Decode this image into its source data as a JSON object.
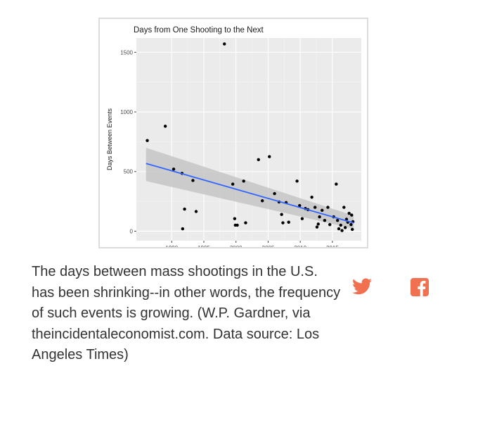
{
  "chart_data": {
    "type": "scatter",
    "title": "Days from One Shooting to the Next",
    "xlabel": "",
    "ylabel": "Days Between Events",
    "xlim": [
      1984.5,
      2019.5
    ],
    "ylim": [
      -80,
      1620
    ],
    "xticks": [
      1990,
      1995,
      2000,
      2005,
      2010,
      2015
    ],
    "yticks": [
      0,
      500,
      1000,
      1500
    ],
    "grid": true,
    "colors": {
      "panel": "#ebebeb",
      "grid_major": "#ffffff",
      "point": "#000000",
      "trend": "#3366ff",
      "ribbon": "#c6c6c6"
    },
    "series": [
      {
        "points": [
          {
            "x": 1986.2,
            "y": 760
          },
          {
            "x": 1989.0,
            "y": 880
          },
          {
            "x": 1990.3,
            "y": 520
          },
          {
            "x": 1991.6,
            "y": 485
          },
          {
            "x": 1992.0,
            "y": 185
          },
          {
            "x": 1991.7,
            "y": 20
          },
          {
            "x": 1993.3,
            "y": 425
          },
          {
            "x": 1993.8,
            "y": 165
          },
          {
            "x": 1998.2,
            "y": 1570
          },
          {
            "x": 1999.5,
            "y": 395
          },
          {
            "x": 1999.8,
            "y": 105
          },
          {
            "x": 1999.9,
            "y": 50
          },
          {
            "x": 2000.2,
            "y": 50
          },
          {
            "x": 2001.2,
            "y": 420
          },
          {
            "x": 2001.5,
            "y": 70
          },
          {
            "x": 2003.5,
            "y": 600
          },
          {
            "x": 2004.1,
            "y": 255
          },
          {
            "x": 2005.2,
            "y": 625
          },
          {
            "x": 2006.0,
            "y": 315
          },
          {
            "x": 2006.7,
            "y": 245
          },
          {
            "x": 2007.1,
            "y": 140
          },
          {
            "x": 2007.3,
            "y": 70
          },
          {
            "x": 2007.8,
            "y": 240
          },
          {
            "x": 2008.2,
            "y": 75
          },
          {
            "x": 2009.5,
            "y": 420
          },
          {
            "x": 2009.9,
            "y": 215
          },
          {
            "x": 2010.3,
            "y": 105
          },
          {
            "x": 2010.8,
            "y": 190
          },
          {
            "x": 2011.2,
            "y": 180
          },
          {
            "x": 2011.8,
            "y": 285
          },
          {
            "x": 2012.3,
            "y": 200
          },
          {
            "x": 2012.6,
            "y": 35
          },
          {
            "x": 2012.8,
            "y": 60
          },
          {
            "x": 2013.0,
            "y": 120
          },
          {
            "x": 2013.4,
            "y": 175
          },
          {
            "x": 2013.8,
            "y": 90
          },
          {
            "x": 2014.3,
            "y": 200
          },
          {
            "x": 2014.6,
            "y": 55
          },
          {
            "x": 2015.2,
            "y": 120
          },
          {
            "x": 2015.6,
            "y": 395
          },
          {
            "x": 2015.8,
            "y": 90
          },
          {
            "x": 2016.0,
            "y": 20
          },
          {
            "x": 2016.3,
            "y": 50
          },
          {
            "x": 2016.5,
            "y": 5
          },
          {
            "x": 2016.8,
            "y": 200
          },
          {
            "x": 2017.0,
            "y": 30
          },
          {
            "x": 2017.2,
            "y": 100
          },
          {
            "x": 2017.4,
            "y": 75
          },
          {
            "x": 2017.6,
            "y": 150
          },
          {
            "x": 2017.9,
            "y": 55
          },
          {
            "x": 2018.0,
            "y": 135
          },
          {
            "x": 2018.1,
            "y": 15
          },
          {
            "x": 2018.2,
            "y": 80
          }
        ]
      }
    ],
    "trend": {
      "x": [
        1986.0,
        2018.3
      ],
      "y": [
        568,
        70
      ],
      "ribbon_upper": [
        700,
        130
      ],
      "ribbon_lower": [
        420,
        20
      ]
    }
  },
  "caption": {
    "text": "The days between mass shootings in the U.S. has been shrinking--in other words, the frequency of such events is growing. (W.P. Gardner, via theincidentaleconomist.com. Data source: Los Angeles Times)"
  },
  "share": {
    "twitter_icon": "twitter-icon",
    "facebook_icon": "facebook-icon",
    "color": "#f0704f"
  }
}
